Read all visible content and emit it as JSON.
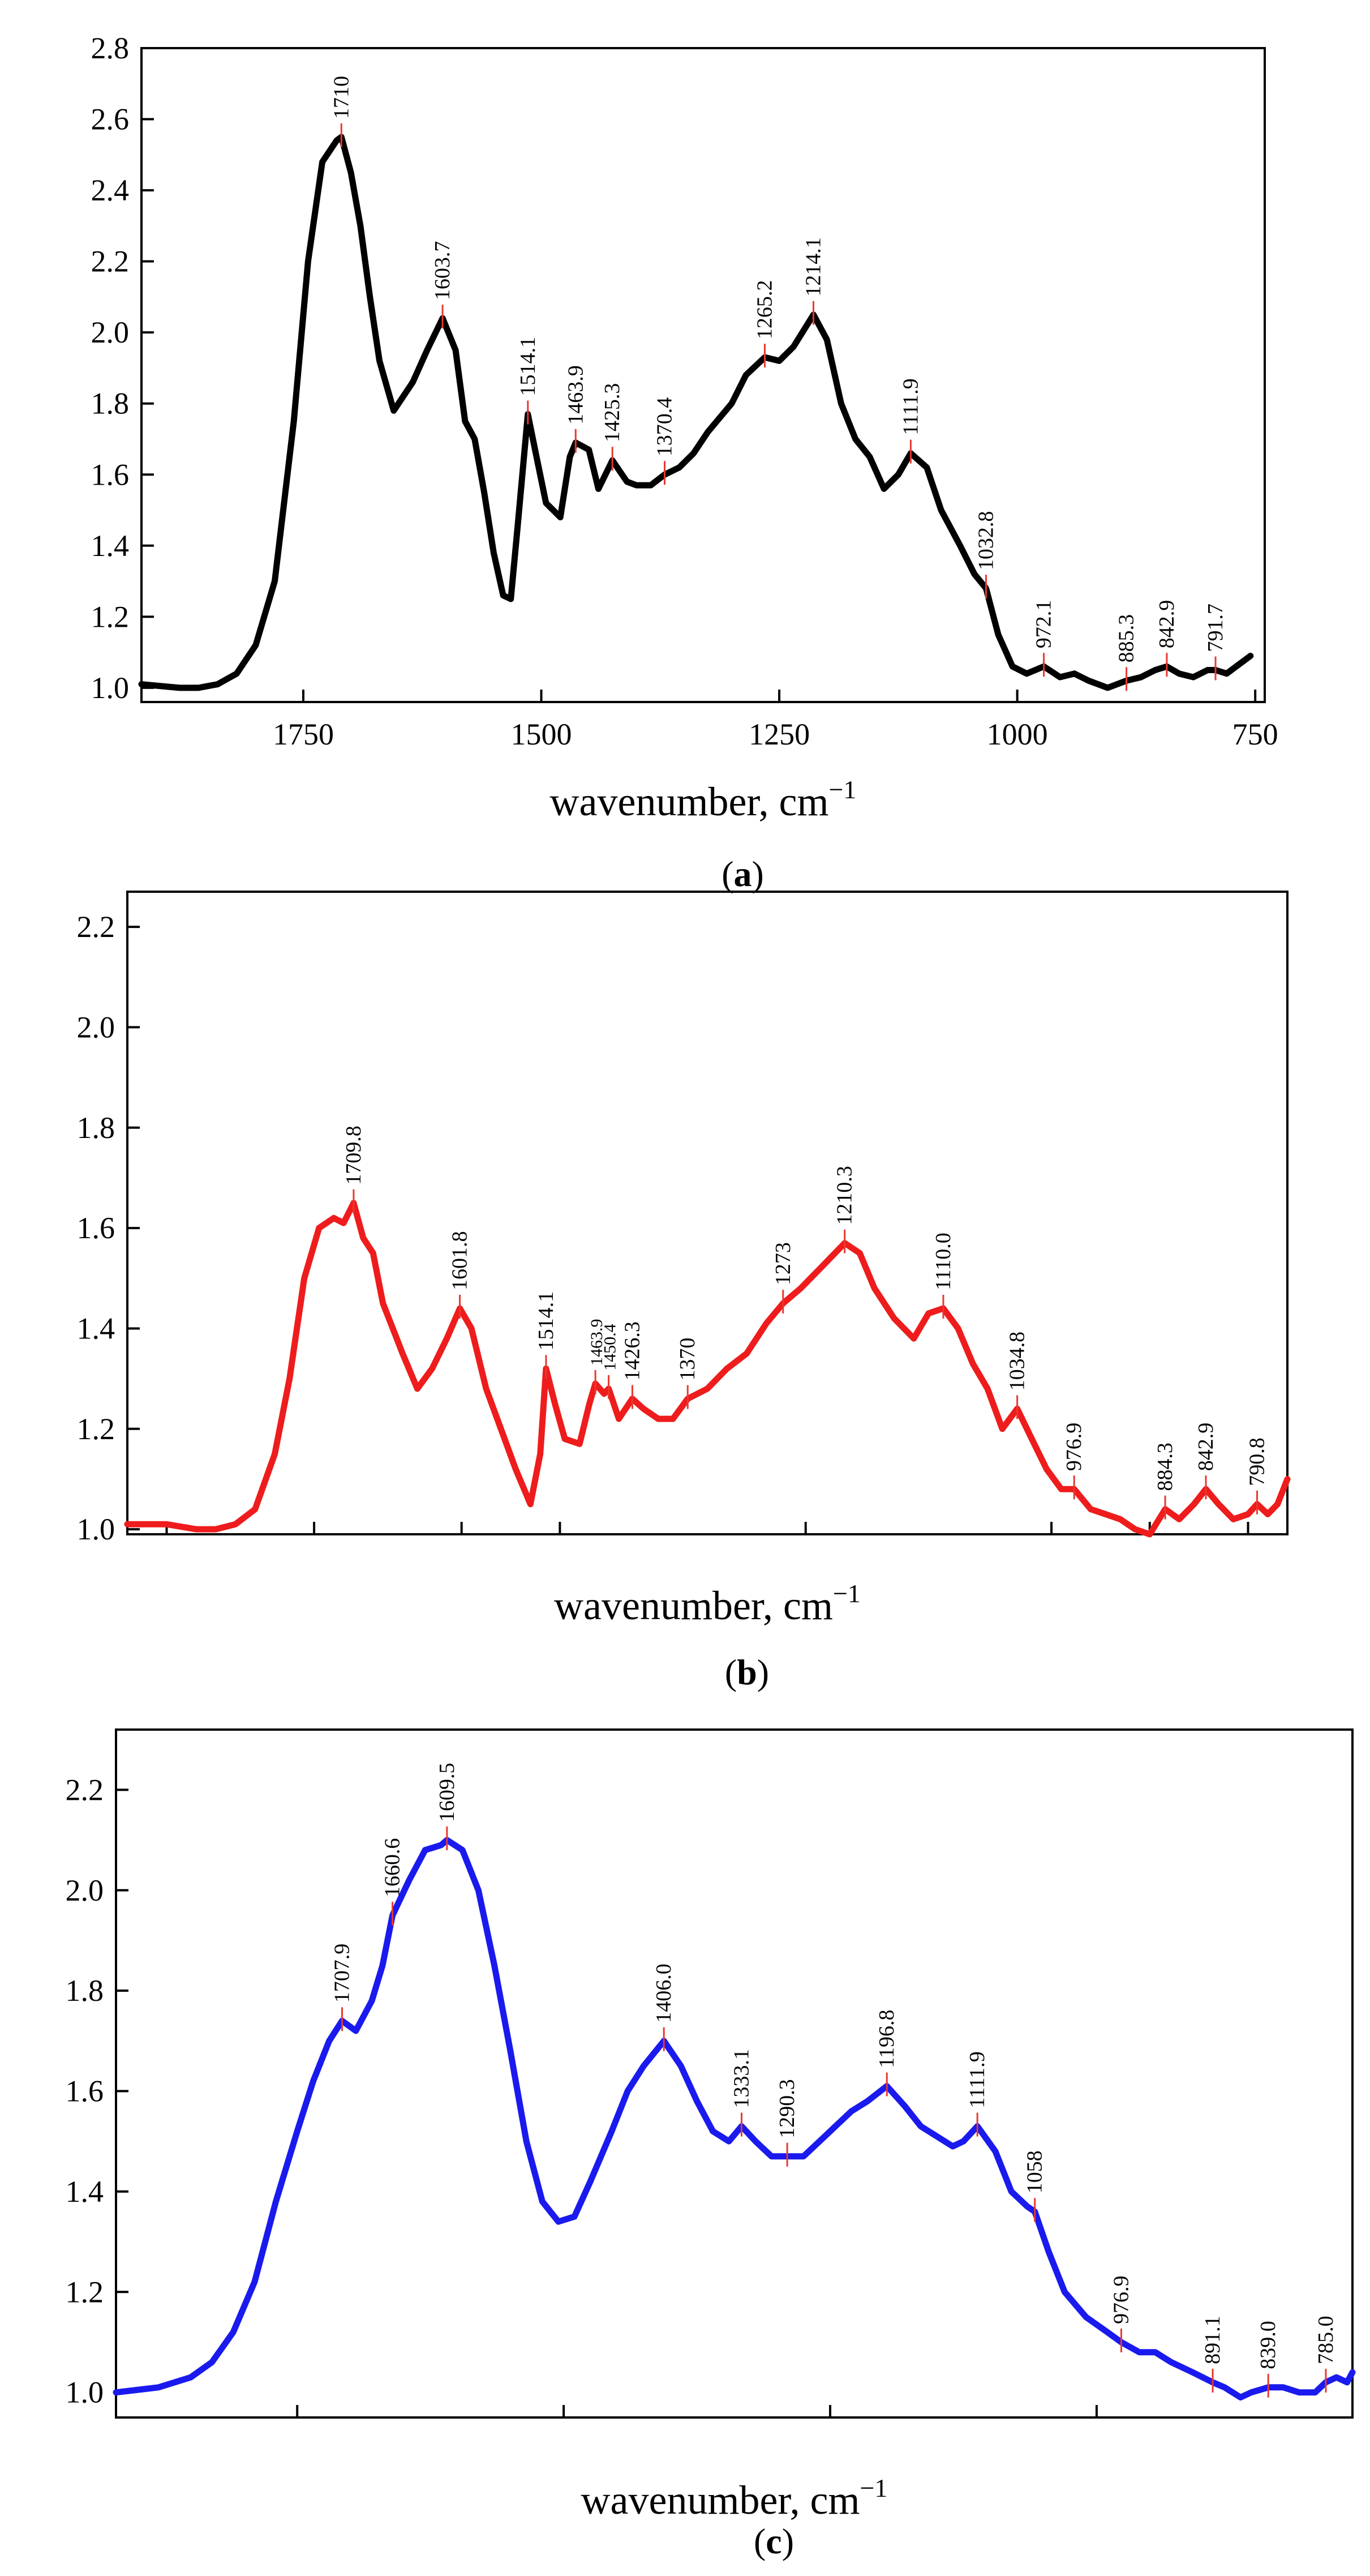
{
  "chart_data": [
    {
      "type": "line",
      "panel_label": "a",
      "color": "#000000",
      "xlabel": "wavenumber, cm",
      "xlabel_sup": "−1",
      "xlim": [
        1920,
        740
      ],
      "ylim": [
        0.96,
        2.8
      ],
      "x_ticks": [
        1750,
        1500,
        1250,
        1000,
        750
      ],
      "x_tick_labels": [
        "1750",
        "1500",
        "1250",
        "1000",
        "750"
      ],
      "y_ticks": [
        1.0,
        1.2,
        1.4,
        1.6,
        1.8,
        2.0,
        2.2,
        2.4,
        2.6,
        2.8
      ],
      "y_tick_labels": [
        "1.0",
        "1.2",
        "1.4",
        "1.6",
        "1.8",
        "2.0",
        "2.2",
        "2.4",
        "2.6",
        "2.8"
      ],
      "x": [
        1920,
        1880,
        1860,
        1840,
        1820,
        1800,
        1780,
        1760,
        1745,
        1730,
        1715,
        1710,
        1700,
        1690,
        1680,
        1670,
        1655,
        1645,
        1635,
        1620,
        1603.7,
        1590,
        1580,
        1570,
        1560,
        1550,
        1540,
        1532,
        1525,
        1514.1,
        1505,
        1495,
        1480,
        1470,
        1463.9,
        1450,
        1440,
        1425.3,
        1410,
        1400,
        1385,
        1370.4,
        1355,
        1340,
        1325,
        1300,
        1285,
        1265.2,
        1250,
        1235,
        1214.1,
        1200,
        1185,
        1170,
        1155,
        1140,
        1125,
        1111.9,
        1095,
        1080,
        1060,
        1045,
        1032.8,
        1020,
        1005,
        990,
        972.1,
        955,
        940,
        925,
        905,
        885.3,
        870,
        855,
        842.9,
        830,
        815,
        800,
        791.7,
        780,
        770,
        755
      ],
      "y": [
        1.01,
        1.0,
        1.0,
        1.01,
        1.04,
        1.12,
        1.3,
        1.75,
        2.2,
        2.48,
        2.54,
        2.55,
        2.45,
        2.3,
        2.1,
        1.92,
        1.78,
        1.82,
        1.86,
        1.95,
        2.04,
        1.95,
        1.75,
        1.7,
        1.55,
        1.38,
        1.26,
        1.25,
        1.45,
        1.77,
        1.65,
        1.52,
        1.48,
        1.65,
        1.69,
        1.67,
        1.56,
        1.64,
        1.58,
        1.57,
        1.57,
        1.6,
        1.62,
        1.66,
        1.72,
        1.8,
        1.88,
        1.93,
        1.92,
        1.96,
        2.05,
        1.98,
        1.8,
        1.7,
        1.65,
        1.56,
        1.6,
        1.66,
        1.62,
        1.5,
        1.4,
        1.32,
        1.28,
        1.15,
        1.06,
        1.04,
        1.06,
        1.03,
        1.04,
        1.02,
        1.0,
        1.02,
        1.03,
        1.05,
        1.06,
        1.04,
        1.03,
        1.05,
        1.05,
        1.04,
        1.06,
        1.09
      ],
      "peaks": [
        {
          "x": 1710,
          "y": 2.55,
          "label": "1710"
        },
        {
          "x": 1603.7,
          "y": 2.04,
          "label": "1603.7"
        },
        {
          "x": 1514.1,
          "y": 1.77,
          "label": "1514.1"
        },
        {
          "x": 1463.9,
          "y": 1.69,
          "label": "1463.9"
        },
        {
          "x": 1425.3,
          "y": 1.64,
          "label": "1425.3"
        },
        {
          "x": 1370.4,
          "y": 1.6,
          "label": "1370.4"
        },
        {
          "x": 1265.2,
          "y": 1.93,
          "label": "1265.2"
        },
        {
          "x": 1214.1,
          "y": 2.05,
          "label": "1214.1"
        },
        {
          "x": 1111.9,
          "y": 1.66,
          "label": "1111.9"
        },
        {
          "x": 1032.8,
          "y": 1.28,
          "label": "1032.8"
        },
        {
          "x": 972.1,
          "y": 1.06,
          "label": "972.1"
        },
        {
          "x": 885.3,
          "y": 1.02,
          "label": "885.3"
        },
        {
          "x": 842.9,
          "y": 1.06,
          "label": "842.9"
        },
        {
          "x": 791.7,
          "y": 1.05,
          "label": "791.7"
        }
      ]
    },
    {
      "type": "line",
      "panel_label": "b",
      "color": "#ee1c1c",
      "xlabel": "wavenumber, cm",
      "xlabel_sup": "−1",
      "xlim": [
        1940,
        760
      ],
      "ylim": [
        0.99,
        2.27
      ],
      "x_ticks": [
        1900,
        1750,
        1600,
        1500,
        1250,
        1000,
        900,
        800
      ],
      "x_tick_labels": [],
      "y_ticks": [
        1.0,
        1.2,
        1.4,
        1.6,
        1.8,
        2.0,
        2.2
      ],
      "y_tick_labels": [
        "1.0",
        "1.2",
        "1.4",
        "1.6",
        "1.8",
        "2.0",
        "2.2"
      ],
      "x": [
        1940,
        1900,
        1870,
        1850,
        1830,
        1810,
        1790,
        1775,
        1760,
        1745,
        1730,
        1720,
        1709.8,
        1700,
        1690,
        1680,
        1670,
        1660,
        1645,
        1630,
        1615,
        1601.8,
        1590,
        1575,
        1560,
        1545,
        1530,
        1520,
        1514.1,
        1505,
        1495,
        1480,
        1470,
        1463.9,
        1455,
        1450.4,
        1440,
        1426.3,
        1415,
        1400,
        1385,
        1370,
        1350,
        1330,
        1310,
        1290,
        1273,
        1255,
        1235,
        1210.3,
        1195,
        1180,
        1160,
        1140,
        1125,
        1110,
        1095,
        1080,
        1065,
        1050,
        1034.8,
        1020,
        1005,
        990,
        976.9,
        960,
        945,
        930,
        915,
        900,
        884.3,
        870,
        855,
        842.9,
        830,
        815,
        800,
        790.8,
        780,
        770,
        760
      ],
      "y": [
        1.01,
        1.01,
        1.0,
        1.0,
        1.01,
        1.04,
        1.15,
        1.3,
        1.5,
        1.6,
        1.62,
        1.61,
        1.65,
        1.58,
        1.55,
        1.45,
        1.4,
        1.35,
        1.28,
        1.32,
        1.38,
        1.44,
        1.4,
        1.28,
        1.2,
        1.12,
        1.05,
        1.15,
        1.32,
        1.25,
        1.18,
        1.17,
        1.25,
        1.29,
        1.27,
        1.28,
        1.22,
        1.26,
        1.24,
        1.22,
        1.22,
        1.26,
        1.28,
        1.32,
        1.35,
        1.41,
        1.45,
        1.48,
        1.52,
        1.57,
        1.55,
        1.48,
        1.42,
        1.38,
        1.43,
        1.44,
        1.4,
        1.33,
        1.28,
        1.2,
        1.24,
        1.18,
        1.12,
        1.08,
        1.08,
        1.04,
        1.03,
        1.02,
        1.0,
        0.99,
        1.04,
        1.02,
        1.05,
        1.08,
        1.05,
        1.02,
        1.03,
        1.05,
        1.03,
        1.05,
        1.1
      ],
      "peaks": [
        {
          "x": 1709.8,
          "y": 1.65,
          "label": "1709.8",
          "small": false
        },
        {
          "x": 1601.8,
          "y": 1.44,
          "label": "1601.8",
          "small": false
        },
        {
          "x": 1514.1,
          "y": 1.32,
          "label": "1514.1",
          "small": false
        },
        {
          "x": 1463.9,
          "y": 1.29,
          "label": "1463.9",
          "small": true
        },
        {
          "x": 1450.4,
          "y": 1.28,
          "label": "1450.4",
          "small": true
        },
        {
          "x": 1426.3,
          "y": 1.26,
          "label": "1426.3",
          "small": false
        },
        {
          "x": 1370,
          "y": 1.26,
          "label": "1370",
          "small": false
        },
        {
          "x": 1273,
          "y": 1.45,
          "label": "1273",
          "small": false
        },
        {
          "x": 1210.3,
          "y": 1.57,
          "label": "1210.3",
          "small": false
        },
        {
          "x": 1110,
          "y": 1.44,
          "label": "1110.0",
          "small": false
        },
        {
          "x": 1034.8,
          "y": 1.24,
          "label": "1034.8",
          "small": false
        },
        {
          "x": 976.9,
          "y": 1.08,
          "label": "976.9",
          "small": false
        },
        {
          "x": 884.3,
          "y": 1.04,
          "label": "884.3",
          "small": false
        },
        {
          "x": 842.9,
          "y": 1.08,
          "label": "842.9",
          "small": false
        },
        {
          "x": 790.8,
          "y": 1.05,
          "label": "790.8",
          "small": false
        }
      ]
    },
    {
      "type": "line",
      "panel_label": "c",
      "color": "#1a1aee",
      "xlabel": "wavenumber, cm",
      "xlabel_sup": "−1",
      "xlim": [
        1920,
        760
      ],
      "ylim": [
        0.95,
        2.32
      ],
      "x_ticks": [
        1750,
        1500,
        1250,
        1000
      ],
      "x_tick_labels": [],
      "y_ticks": [
        1.0,
        1.2,
        1.4,
        1.6,
        1.8,
        2.0,
        2.2
      ],
      "y_tick_labels": [
        "1.0",
        "1.2",
        "1.4",
        "1.6",
        "1.8",
        "2.0",
        "2.2"
      ],
      "x": [
        1920,
        1880,
        1850,
        1830,
        1810,
        1790,
        1770,
        1750,
        1735,
        1720,
        1707.9,
        1695,
        1680,
        1670,
        1660.6,
        1645,
        1630,
        1615,
        1609.5,
        1595,
        1580,
        1565,
        1550,
        1535,
        1520,
        1505,
        1490,
        1475,
        1455,
        1440,
        1425,
        1406,
        1390,
        1375,
        1360,
        1345,
        1333.1,
        1320,
        1305,
        1290.3,
        1275,
        1260,
        1245,
        1230,
        1215,
        1196.8,
        1180,
        1165,
        1150,
        1135,
        1125,
        1111.9,
        1095,
        1080,
        1065,
        1058,
        1045,
        1030,
        1010,
        990,
        976.9,
        960,
        945,
        930,
        910,
        891.1,
        880,
        865,
        855,
        839,
        825,
        810,
        795,
        785,
        775,
        765,
        760
      ],
      "y": [
        1.0,
        1.01,
        1.03,
        1.06,
        1.12,
        1.22,
        1.38,
        1.52,
        1.62,
        1.7,
        1.74,
        1.72,
        1.78,
        1.85,
        1.95,
        2.02,
        2.08,
        2.09,
        2.1,
        2.08,
        2.0,
        1.85,
        1.68,
        1.5,
        1.38,
        1.34,
        1.35,
        1.42,
        1.52,
        1.6,
        1.65,
        1.7,
        1.65,
        1.58,
        1.52,
        1.5,
        1.53,
        1.5,
        1.47,
        1.47,
        1.47,
        1.5,
        1.53,
        1.56,
        1.58,
        1.61,
        1.57,
        1.53,
        1.51,
        1.49,
        1.5,
        1.53,
        1.48,
        1.4,
        1.37,
        1.36,
        1.28,
        1.2,
        1.15,
        1.12,
        1.1,
        1.08,
        1.08,
        1.06,
        1.04,
        1.02,
        1.01,
        0.99,
        1.0,
        1.01,
        1.01,
        1.0,
        1.0,
        1.02,
        1.03,
        1.02,
        1.04
      ],
      "peaks": [
        {
          "x": 1707.9,
          "y": 1.74,
          "label": "1707.9"
        },
        {
          "x": 1660.6,
          "y": 1.95,
          "label": "1660.6"
        },
        {
          "x": 1609.5,
          "y": 2.1,
          "label": "1609.5"
        },
        {
          "x": 1406,
          "y": 1.7,
          "label": "1406.0"
        },
        {
          "x": 1333.1,
          "y": 1.53,
          "label": "1333.1"
        },
        {
          "x": 1290.3,
          "y": 1.47,
          "label": "1290.3"
        },
        {
          "x": 1196.8,
          "y": 1.61,
          "label": "1196.8"
        },
        {
          "x": 1111.9,
          "y": 1.53,
          "label": "1111.9"
        },
        {
          "x": 1058,
          "y": 1.36,
          "label": "1058"
        },
        {
          "x": 976.9,
          "y": 1.1,
          "label": "976.9"
        },
        {
          "x": 891.1,
          "y": 1.02,
          "label": "891.1"
        },
        {
          "x": 839,
          "y": 1.01,
          "label": "839.0"
        },
        {
          "x": 785,
          "y": 1.02,
          "label": "785.0"
        }
      ]
    }
  ]
}
